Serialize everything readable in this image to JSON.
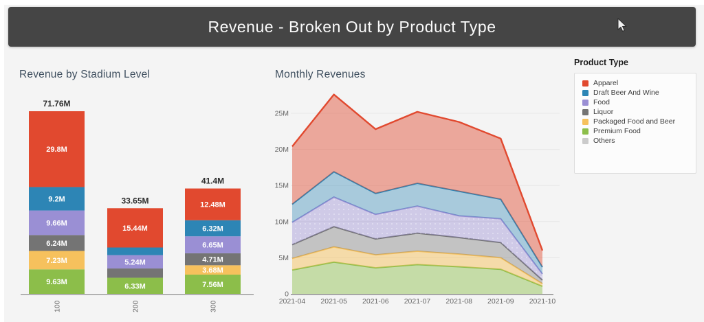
{
  "header": {
    "title": "Revenue - Broken Out by Product Type",
    "background": "#454545"
  },
  "legend": {
    "title": "Product Type",
    "items": [
      {
        "label": "Apparel",
        "color": "#e1492f"
      },
      {
        "label": "Draft Beer And Wine",
        "color": "#2d85b5"
      },
      {
        "label": "Food",
        "color": "#9a8fd4"
      },
      {
        "label": "Liquor",
        "color": "#747474"
      },
      {
        "label": "Packaged Food and Beer",
        "color": "#f6c15d"
      },
      {
        "label": "Premium Food",
        "color": "#8cbe4a"
      },
      {
        "label": "Others",
        "color": "#cbcbcb"
      }
    ]
  },
  "series_colors": {
    "Apparel": "#e1492f",
    "Draft Beer And Wine": "#2d85b5",
    "Food": "#9a8fd4",
    "Liquor": "#747474",
    "Packaged Food and Beer": "#f6c15d",
    "Premium Food": "#8cbe4a",
    "Others": "#cbcbcb"
  },
  "chart_data": [
    {
      "type": "bar",
      "title": "Revenue by Stadium Level",
      "stacked": true,
      "unit": "M",
      "categories": [
        "100",
        "200",
        "300"
      ],
      "bars": [
        {
          "category": "100",
          "total": 71.76,
          "total_label": "71.76M",
          "segments": [
            {
              "name": "Premium Food",
              "value": 9.63,
              "label": "9.63M"
            },
            {
              "name": "Packaged Food and Beer",
              "value": 7.23,
              "label": "7.23M"
            },
            {
              "name": "Liquor",
              "value": 6.24,
              "label": "6.24M"
            },
            {
              "name": "Food",
              "value": 9.66,
              "label": "9.66M"
            },
            {
              "name": "Draft Beer And Wine",
              "value": 9.2,
              "label": "9.2M"
            },
            {
              "name": "Apparel",
              "value": 29.8,
              "label": "29.8M"
            }
          ]
        },
        {
          "category": "200",
          "total": 33.65,
          "total_label": "33.65M",
          "segments": [
            {
              "name": "Premium Food",
              "value": 6.33,
              "label": "6.33M"
            },
            {
              "name": "Liquor",
              "value": 3.64,
              "label": ""
            },
            {
              "name": "Food",
              "value": 5.24,
              "label": "5.24M"
            },
            {
              "name": "Draft Beer And Wine",
              "value": 3.0,
              "label": ""
            },
            {
              "name": "Apparel",
              "value": 15.44,
              "label": "15.44M"
            }
          ]
        },
        {
          "category": "300",
          "total": 41.4,
          "total_label": "41.4M",
          "segments": [
            {
              "name": "Premium Food",
              "value": 7.56,
              "label": "7.56M"
            },
            {
              "name": "Packaged Food and Beer",
              "value": 3.68,
              "label": "3.68M"
            },
            {
              "name": "Liquor",
              "value": 4.71,
              "label": "4.71M"
            },
            {
              "name": "Food",
              "value": 6.65,
              "label": "6.65M"
            },
            {
              "name": "Draft Beer And Wine",
              "value": 6.32,
              "label": "6.32M"
            },
            {
              "name": "Apparel",
              "value": 12.48,
              "label": "12.48M"
            }
          ]
        }
      ]
    },
    {
      "type": "area",
      "title": "Monthly Revenues",
      "stacked": true,
      "unit": "M",
      "x": [
        "2021-04",
        "2021-05",
        "2021-06",
        "2021-07",
        "2021-08",
        "2021-09",
        "2021-10"
      ],
      "y_ticks": [
        "0",
        "5M",
        "10M",
        "15M",
        "20M",
        "25M"
      ],
      "y_tick_values": [
        0,
        5,
        10,
        15,
        20,
        25
      ],
      "ylim": [
        0,
        28
      ],
      "grid": true,
      "series": [
        {
          "name": "Premium Food",
          "values": [
            3.3,
            4.4,
            3.6,
            4.05,
            3.75,
            3.4,
            1.05
          ]
        },
        {
          "name": "Packaged Food and Beer",
          "values": [
            1.6,
            2.1,
            1.8,
            1.85,
            1.75,
            1.6,
            0.35
          ]
        },
        {
          "name": "Liquor",
          "values": [
            1.9,
            2.8,
            2.2,
            2.5,
            2.3,
            2.1,
            0.5
          ],
          "dotted": false
        },
        {
          "name": "Food",
          "values": [
            3.1,
            4.1,
            3.4,
            3.75,
            3.0,
            3.3,
            0.85
          ],
          "dotted": true
        },
        {
          "name": "Draft Beer And Wine",
          "values": [
            2.5,
            3.5,
            2.9,
            3.15,
            3.4,
            2.7,
            0.95
          ]
        },
        {
          "name": "Apparel",
          "values": [
            8.0,
            10.7,
            8.9,
            9.9,
            9.6,
            8.4,
            2.3
          ]
        }
      ]
    }
  ]
}
